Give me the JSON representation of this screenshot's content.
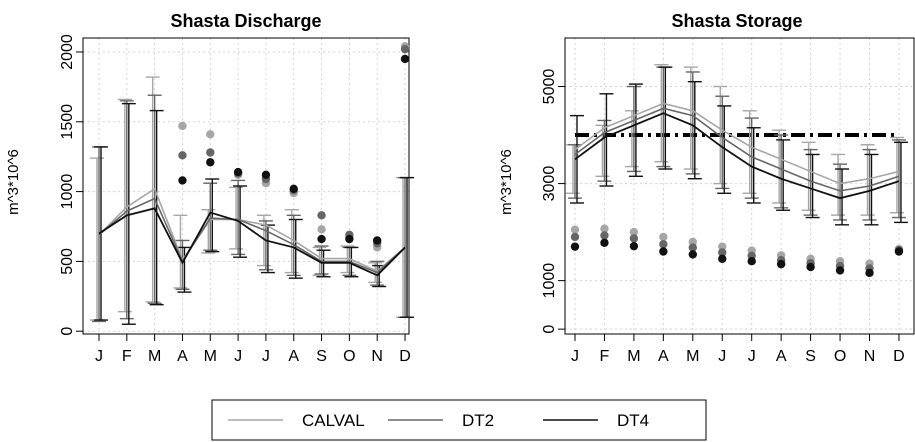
{
  "colors": {
    "CALVAL": "#a6a6a6",
    "DT2": "#666666",
    "DT4": "#111111",
    "grid": "#d3d3d3"
  },
  "legend": {
    "placement": "bottom-center",
    "items": [
      "CALVAL",
      "DT2",
      "DT4"
    ]
  },
  "chart_data": [
    {
      "type": "line",
      "title": "Shasta Discharge",
      "xlabel": "",
      "ylabel": "m^3*10^6",
      "categories": [
        "J",
        "F",
        "M",
        "A",
        "M",
        "J",
        "J",
        "A",
        "S",
        "O",
        "N",
        "D"
      ],
      "ylim": [
        -20,
        2100
      ],
      "yticks": [
        0,
        500,
        1000,
        1500,
        2000
      ],
      "grid": true,
      "series": [
        {
          "name": "CALVAL",
          "values": [
            690,
            890,
            1020,
            510,
            800,
            800,
            760,
            650,
            520,
            520,
            430,
            600
          ]
        },
        {
          "name": "DT2",
          "values": [
            690,
            860,
            950,
            500,
            810,
            800,
            720,
            620,
            500,
            500,
            420,
            600
          ]
        },
        {
          "name": "DT4",
          "values": [
            700,
            830,
            880,
            490,
            850,
            790,
            650,
            600,
            490,
            490,
            400,
            600
          ]
        }
      ],
      "ranges": [
        {
          "name": "CALVAL",
          "low": [
            80,
            140,
            210,
            310,
            560,
            590,
            470,
            420,
            400,
            420,
            350,
            100
          ],
          "high": [
            1240,
            1660,
            1820,
            830,
            870,
            1030,
            830,
            870,
            600,
            610,
            490,
            1100
          ]
        },
        {
          "name": "DT2",
          "low": [
            70,
            90,
            200,
            300,
            580,
            550,
            440,
            400,
            410,
            400,
            330,
            100
          ],
          "high": [
            1320,
            1650,
            1690,
            650,
            1060,
            1080,
            790,
            830,
            610,
            600,
            500,
            1100
          ]
        },
        {
          "name": "DT4",
          "low": [
            80,
            50,
            190,
            280,
            570,
            530,
            420,
            380,
            390,
            390,
            320,
            100
          ],
          "high": [
            1320,
            1630,
            1580,
            600,
            1090,
            1040,
            760,
            800,
            580,
            600,
            470,
            1100
          ]
        }
      ],
      "points": [
        {
          "name": "CALVAL",
          "values": [
            null,
            null,
            null,
            1470,
            1410,
            1120,
            1060,
            990,
            730,
            670,
            600,
            2040
          ]
        },
        {
          "name": "DT2",
          "values": [
            null,
            null,
            null,
            1260,
            1280,
            1130,
            1090,
            1010,
            830,
            690,
            630,
            2020
          ]
        },
        {
          "name": "DT4",
          "values": [
            null,
            null,
            null,
            1080,
            1210,
            1140,
            1120,
            1020,
            660,
            660,
            650,
            1950
          ]
        }
      ]
    },
    {
      "type": "line",
      "title": "Shasta Storage",
      "xlabel": "",
      "ylabel": "m^3*10^6",
      "categories": [
        "J",
        "F",
        "M",
        "A",
        "M",
        "J",
        "J",
        "A",
        "S",
        "O",
        "N",
        "D"
      ],
      "ylim": [
        -100,
        6000
      ],
      "yticks": [
        0,
        1000,
        3000,
        5000
      ],
      "grid": true,
      "reference_line": 4000,
      "series": [
        {
          "name": "CALVAL",
          "values": [
            3700,
            4150,
            4400,
            4650,
            4500,
            4100,
            3750,
            3500,
            3250,
            3000,
            3100,
            3250
          ]
        },
        {
          "name": "DT2",
          "values": [
            3600,
            4050,
            4300,
            4550,
            4400,
            3950,
            3550,
            3300,
            3050,
            2850,
            2950,
            3150
          ]
        },
        {
          "name": "DT4",
          "values": [
            3500,
            3950,
            4200,
            4450,
            4200,
            3750,
            3350,
            3100,
            2900,
            2700,
            2850,
            3050
          ]
        }
      ],
      "ranges": [
        {
          "name": "CALVAL",
          "low": [
            2800,
            3150,
            3350,
            3450,
            3300,
            3000,
            2800,
            2600,
            2450,
            2350,
            2350,
            2400
          ],
          "high": [
            3800,
            4200,
            4500,
            5450,
            5400,
            5000,
            4500,
            4100,
            3850,
            3600,
            3800,
            3950
          ]
        },
        {
          "name": "DT2",
          "values_note": "",
          "low": [
            2700,
            3050,
            3250,
            3350,
            3200,
            2900,
            2700,
            2500,
            2350,
            2250,
            2250,
            2300
          ],
          "high": [
            3800,
            4300,
            5000,
            5400,
            5300,
            4800,
            4350,
            4000,
            3700,
            3400,
            3700,
            3900
          ]
        },
        {
          "name": "DT4",
          "low": [
            2600,
            2950,
            3150,
            3300,
            3100,
            2800,
            2600,
            2450,
            2300,
            2150,
            2150,
            2200
          ],
          "high": [
            4400,
            4850,
            5050,
            5400,
            5100,
            4600,
            4150,
            3900,
            3600,
            3300,
            3600,
            3850
          ]
        }
      ],
      "points": [
        {
          "name": "CALVAL",
          "values": [
            2050,
            2070,
            2000,
            1900,
            1800,
            1700,
            1620,
            1520,
            1450,
            1400,
            1350,
            1650
          ]
        },
        {
          "name": "DT2",
          "values": [
            1900,
            1930,
            1870,
            1750,
            1680,
            1580,
            1510,
            1420,
            1360,
            1300,
            1250,
            1630
          ]
        },
        {
          "name": "DT4",
          "values": [
            1700,
            1780,
            1710,
            1600,
            1540,
            1450,
            1400,
            1340,
            1280,
            1210,
            1160,
            1600
          ]
        }
      ]
    }
  ]
}
